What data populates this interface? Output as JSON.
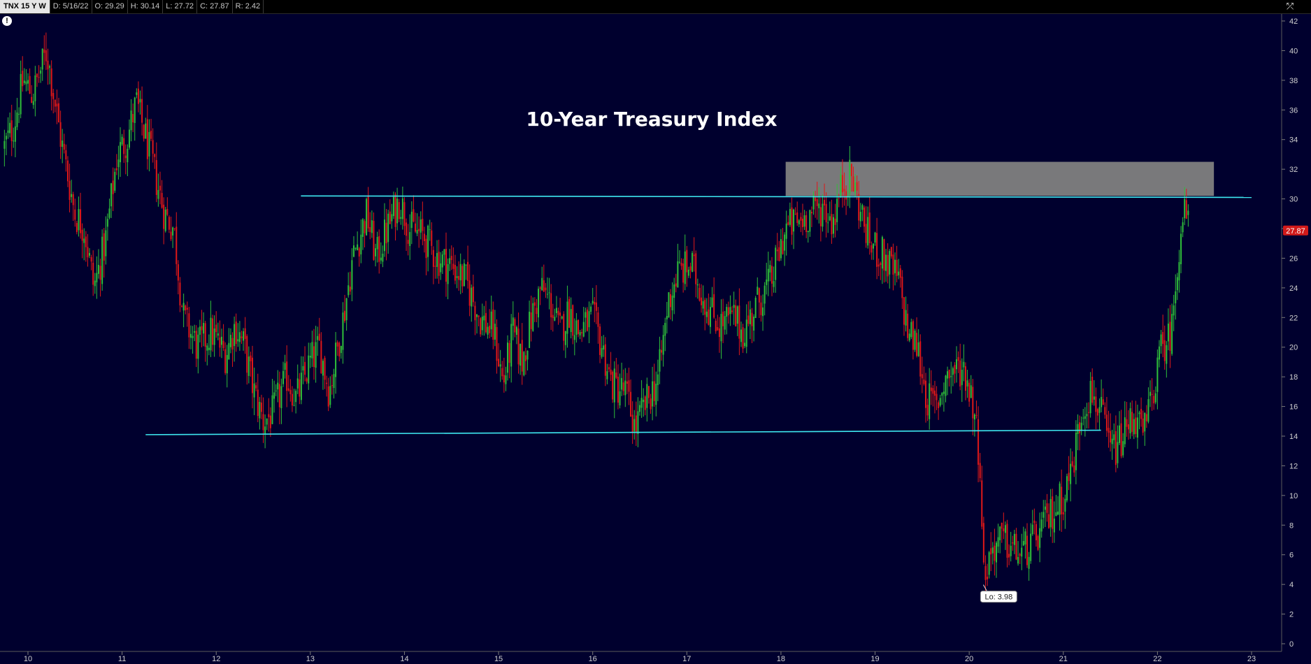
{
  "info_bar": {
    "symbol": "TNX 15 Y W",
    "date": "D: 5/16/22",
    "open": "O: 29.29",
    "high": "H: 30.14",
    "low": "L: 27.72",
    "close": "C: 27.87",
    "range": "R: 2.42"
  },
  "icons": {
    "alert": "alert-icon",
    "settings": "chart-settings-icon"
  },
  "colors": {
    "background": "#00002e",
    "up_candle": "#2fbf3a",
    "down_candle": "#e01818",
    "trendline": "#3ee8f0",
    "zone": "#7f7f7f",
    "price_tag": "#d11a1a"
  },
  "chart_data": {
    "type": "candlestick",
    "title": "10-Year Treasury Index",
    "x_ticks": [
      "10",
      "11",
      "12",
      "13",
      "14",
      "15",
      "16",
      "17",
      "18",
      "19",
      "20",
      "21",
      "22",
      "23"
    ],
    "y_ticks": [
      "0",
      "2",
      "4",
      "6",
      "8",
      "10",
      "12",
      "14",
      "16",
      "18",
      "20",
      "22",
      "24",
      "26",
      "28",
      "30",
      "32",
      "34",
      "36",
      "38",
      "40",
      "42"
    ],
    "xlim": [
      9.75,
      23.2
    ],
    "ylim": [
      0,
      42
    ],
    "grid": false,
    "current_price": "27.87",
    "low_label": "Lo: 3.98",
    "low_point": {
      "x": 20.15,
      "y": 3.98
    },
    "resistance_line": {
      "x_start": 12.9,
      "x_end": 23.0,
      "y_start": 30.2,
      "y_end": 30.1
    },
    "support_line": {
      "x_start": 11.25,
      "x_end": 21.4,
      "y_start": 14.1,
      "y_end": 14.4
    },
    "resistance_zone": {
      "x_start": 18.05,
      "x_end": 22.6,
      "y_low": 30.2,
      "y_high": 32.5
    },
    "price_path": [
      [
        9.75,
        33.5
      ],
      [
        9.85,
        35
      ],
      [
        9.95,
        38
      ],
      [
        10.05,
        37
      ],
      [
        10.2,
        40
      ],
      [
        10.35,
        34
      ],
      [
        10.5,
        29
      ],
      [
        10.6,
        28
      ],
      [
        10.7,
        24
      ],
      [
        10.82,
        27
      ],
      [
        10.95,
        33
      ],
      [
        11.05,
        34
      ],
      [
        11.15,
        36.5
      ],
      [
        11.3,
        33
      ],
      [
        11.45,
        29
      ],
      [
        11.55,
        28
      ],
      [
        11.65,
        22
      ],
      [
        11.8,
        20
      ],
      [
        11.95,
        21
      ],
      [
        12.1,
        19.5
      ],
      [
        12.2,
        21.5
      ],
      [
        12.3,
        20
      ],
      [
        12.4,
        17
      ],
      [
        12.5,
        15
      ],
      [
        12.6,
        15.5
      ],
      [
        12.75,
        18
      ],
      [
        12.85,
        16.5
      ],
      [
        13.0,
        19
      ],
      [
        13.1,
        20
      ],
      [
        13.2,
        17
      ],
      [
        13.35,
        22
      ],
      [
        13.45,
        26
      ],
      [
        13.6,
        29
      ],
      [
        13.7,
        26
      ],
      [
        13.85,
        28.5
      ],
      [
        13.95,
        30
      ],
      [
        14.05,
        28
      ],
      [
        14.2,
        27.5
      ],
      [
        14.35,
        26
      ],
      [
        14.5,
        25.5
      ],
      [
        14.65,
        24.5
      ],
      [
        14.8,
        22
      ],
      [
        14.95,
        21
      ],
      [
        15.05,
        17.5
      ],
      [
        15.15,
        21
      ],
      [
        15.25,
        19
      ],
      [
        15.35,
        22
      ],
      [
        15.45,
        24
      ],
      [
        15.55,
        23
      ],
      [
        15.65,
        21
      ],
      [
        15.75,
        22.5
      ],
      [
        15.85,
        21
      ],
      [
        16.0,
        22
      ],
      [
        16.1,
        20
      ],
      [
        16.2,
        17.5
      ],
      [
        16.35,
        17
      ],
      [
        16.45,
        14.5
      ],
      [
        16.55,
        16
      ],
      [
        16.7,
        18
      ],
      [
        16.8,
        23
      ],
      [
        16.9,
        25
      ],
      [
        17.05,
        25.5
      ],
      [
        17.2,
        23
      ],
      [
        17.35,
        21.5
      ],
      [
        17.5,
        22
      ],
      [
        17.6,
        21
      ],
      [
        17.75,
        23
      ],
      [
        17.9,
        24.5
      ],
      [
        18.05,
        28
      ],
      [
        18.2,
        28.5
      ],
      [
        18.3,
        29
      ],
      [
        18.45,
        29.5
      ],
      [
        18.55,
        28.5
      ],
      [
        18.65,
        31
      ],
      [
        18.75,
        31.5
      ],
      [
        18.85,
        29
      ],
      [
        18.95,
        27
      ],
      [
        19.1,
        26
      ],
      [
        19.25,
        24.5
      ],
      [
        19.35,
        21
      ],
      [
        19.45,
        20
      ],
      [
        19.55,
        16.5
      ],
      [
        19.65,
        16
      ],
      [
        19.75,
        18
      ],
      [
        19.85,
        18.5
      ],
      [
        19.95,
        18.5
      ],
      [
        20.05,
        16
      ],
      [
        20.12,
        12
      ],
      [
        20.15,
        4.5
      ],
      [
        20.25,
        6.5
      ],
      [
        20.35,
        7
      ],
      [
        20.45,
        6.5
      ],
      [
        20.55,
        6
      ],
      [
        20.7,
        7
      ],
      [
        20.85,
        8.5
      ],
      [
        21.0,
        10
      ],
      [
        21.1,
        12
      ],
      [
        21.2,
        16
      ],
      [
        21.3,
        17
      ],
      [
        21.4,
        15.5
      ],
      [
        21.5,
        13
      ],
      [
        21.6,
        13.5
      ],
      [
        21.75,
        15.5
      ],
      [
        21.85,
        14
      ],
      [
        21.95,
        17
      ],
      [
        22.05,
        20
      ],
      [
        22.15,
        21
      ],
      [
        22.2,
        25
      ],
      [
        22.25,
        28
      ],
      [
        22.3,
        29.3
      ],
      [
        22.33,
        27.87
      ]
    ]
  }
}
